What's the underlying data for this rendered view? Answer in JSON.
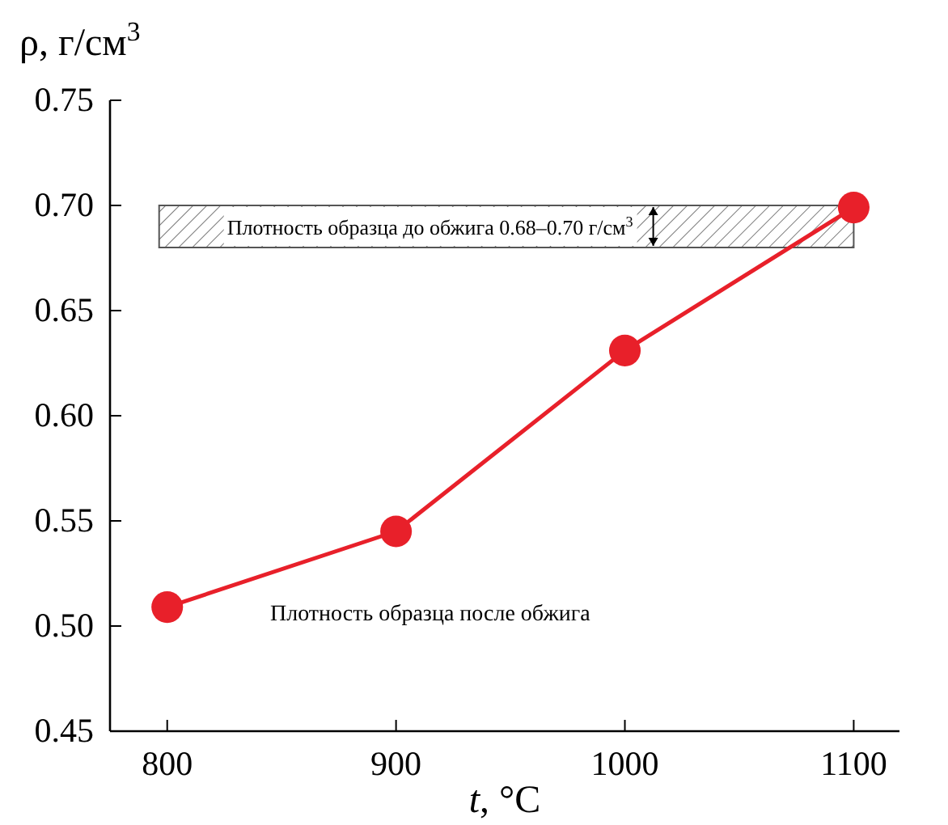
{
  "chart_data": {
    "type": "line",
    "xlabel": "t, °C",
    "ylabel": "ρ, г/см$^{3}$",
    "x": [
      800,
      900,
      1000,
      1100
    ],
    "series": [
      {
        "name": "Плотность образца после обжига",
        "color": "#e8202a",
        "values": [
          0.509,
          0.545,
          0.631,
          0.699
        ]
      }
    ],
    "marker": "circle",
    "line_style": "solid",
    "grid": false,
    "xlim": [
      775,
      1120
    ],
    "xticks": [
      800,
      900,
      1000,
      1100
    ],
    "ylim": [
      0.45,
      0.75
    ],
    "yticks": [
      {
        "value": 0.45,
        "label": "0.45"
      },
      {
        "value": 0.5,
        "label": "0.50"
      },
      {
        "value": 0.55,
        "label": "0.55"
      },
      {
        "value": 0.6,
        "label": "0.60"
      },
      {
        "value": 0.65,
        "label": "0.65"
      },
      {
        "value": 0.7,
        "label": "0.70"
      },
      {
        "value": 0.75,
        "label": "0.75"
      }
    ],
    "bands": [
      {
        "axis": "y",
        "from": 0.68,
        "to": 0.7,
        "label": "Плотность образца до обжига 0.68–0.70 г/см$^{3}$",
        "color": "#555555"
      }
    ]
  }
}
